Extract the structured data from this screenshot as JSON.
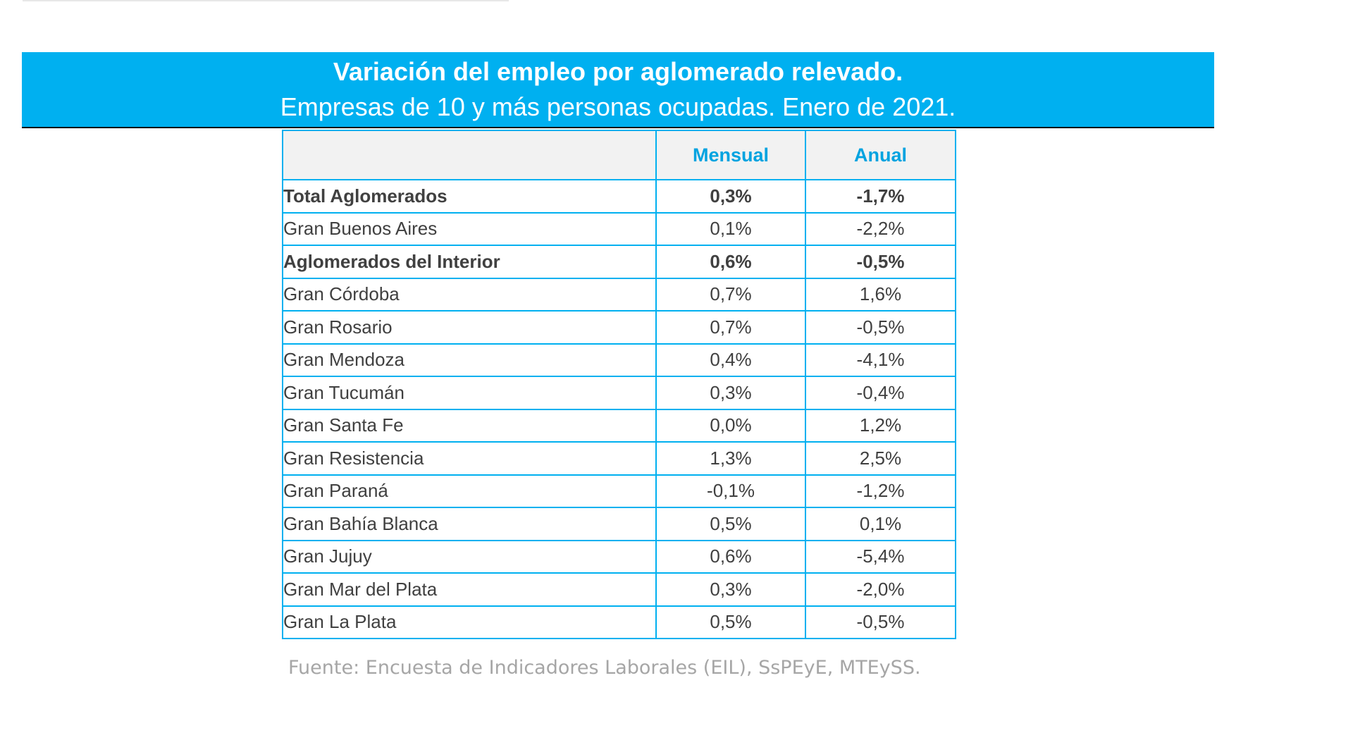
{
  "header": {
    "title": "Variación del empleo por aglomerado relevado.",
    "subtitle": "Empresas de 10 y más personas ocupadas. Enero de 2021."
  },
  "colors": {
    "banner": "#00b0f0",
    "header_text": "#00a3e0",
    "grid": "#00b0f0",
    "text": "#404040",
    "source_text": "#a6a6a6"
  },
  "chart_data": {
    "type": "table",
    "title": "Variación del empleo por aglomerado relevado.",
    "subtitle": "Empresas de 10 y más personas ocupadas. Enero de 2021.",
    "columns": [
      "",
      "Mensual",
      "Anual"
    ],
    "rows": [
      {
        "label": "Total Aglomerados",
        "mensual": "0,3%",
        "anual": "-1,7%",
        "level": 0,
        "bold": true
      },
      {
        "label": "Gran Buenos Aires",
        "mensual": "0,1%",
        "anual": "-2,2%",
        "level": 2,
        "bold": false
      },
      {
        "label": "Aglomerados del Interior",
        "mensual": "0,6%",
        "anual": "-0,5%",
        "level": 1,
        "bold": true
      },
      {
        "label": "Gran Córdoba",
        "mensual": "0,7%",
        "anual": "1,6%",
        "level": 2,
        "bold": false
      },
      {
        "label": "Gran Rosario",
        "mensual": "0,7%",
        "anual": "-0,5%",
        "level": 2,
        "bold": false
      },
      {
        "label": "Gran Mendoza",
        "mensual": "0,4%",
        "anual": "-4,1%",
        "level": 2,
        "bold": false
      },
      {
        "label": "Gran Tucumán",
        "mensual": "0,3%",
        "anual": "-0,4%",
        "level": 2,
        "bold": false
      },
      {
        "label": "Gran Santa Fe",
        "mensual": "0,0%",
        "anual": "1,2%",
        "level": 2,
        "bold": false
      },
      {
        "label": "Gran Resistencia",
        "mensual": "1,3%",
        "anual": "2,5%",
        "level": 2,
        "bold": false
      },
      {
        "label": "Gran Paraná",
        "mensual": "-0,1%",
        "anual": "-1,2%",
        "level": 2,
        "bold": false
      },
      {
        "label": "Gran Bahía Blanca",
        "mensual": "0,5%",
        "anual": "0,1%",
        "level": 2,
        "bold": false
      },
      {
        "label": "Gran Jujuy",
        "mensual": "0,6%",
        "anual": "-5,4%",
        "level": 2,
        "bold": false
      },
      {
        "label": "Gran Mar del Plata",
        "mensual": "0,3%",
        "anual": "-2,0%",
        "level": 2,
        "bold": false
      },
      {
        "label": "Gran La Plata",
        "mensual": "0,5%",
        "anual": "-0,5%",
        "level": 2,
        "bold": false
      }
    ]
  },
  "footer": {
    "source": "Fuente: Encuesta de Indicadores Laborales (EIL), SsPEyE, MTEySS."
  }
}
